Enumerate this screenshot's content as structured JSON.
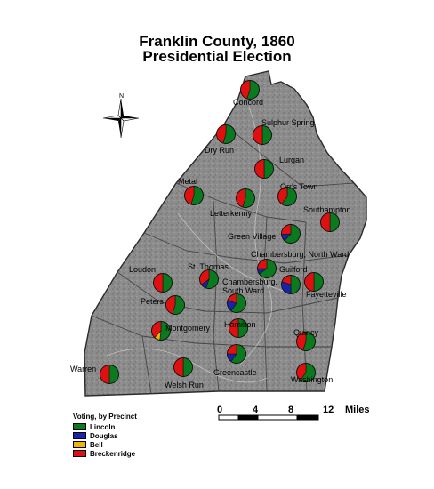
{
  "title": {
    "line1": "Franklin County, 1860",
    "line2": "Presidential Election"
  },
  "compass": {
    "north_label": "N"
  },
  "scale": {
    "ticks": [
      "0",
      "4",
      "8",
      "12"
    ],
    "unit": "Miles"
  },
  "legend": {
    "title": "Voting, by Precinct",
    "items": [
      {
        "label": "Lincoln",
        "color": "#0a7a1e"
      },
      {
        "label": "Douglas",
        "color": "#1a22a8"
      },
      {
        "label": "Bell",
        "color": "#f2b400"
      },
      {
        "label": "Breckenridge",
        "color": "#e01010"
      }
    ]
  },
  "precincts": [
    {
      "name": "Concord",
      "shares": {
        "Lincoln": 0.55,
        "Douglas": 0,
        "Bell": 0,
        "Breckenridge": 0.45
      }
    },
    {
      "name": "Sulphur Spring",
      "shares": {
        "Lincoln": 0.5,
        "Douglas": 0,
        "Bell": 0,
        "Breckenridge": 0.5
      }
    },
    {
      "name": "Dry Run",
      "shares": {
        "Lincoln": 0.55,
        "Douglas": 0,
        "Bell": 0,
        "Breckenridge": 0.45
      }
    },
    {
      "name": "Lurgan",
      "shares": {
        "Lincoln": 0.5,
        "Douglas": 0,
        "Bell": 0,
        "Breckenridge": 0.5
      }
    },
    {
      "name": "Metal",
      "shares": {
        "Lincoln": 0.55,
        "Douglas": 0,
        "Bell": 0,
        "Breckenridge": 0.45
      }
    },
    {
      "name": "Orr's Town",
      "shares": {
        "Lincoln": 0.6,
        "Douglas": 0,
        "Bell": 0,
        "Breckenridge": 0.4
      }
    },
    {
      "name": "Letterkenny",
      "shares": {
        "Lincoln": 0.55,
        "Douglas": 0,
        "Bell": 0,
        "Breckenridge": 0.45
      }
    },
    {
      "name": "Southampton",
      "shares": {
        "Lincoln": 0.5,
        "Douglas": 0,
        "Bell": 0,
        "Breckenridge": 0.5
      }
    },
    {
      "name": "Green Village",
      "shares": {
        "Lincoln": 0.62,
        "Douglas": 0.12,
        "Bell": 0,
        "Breckenridge": 0.26
      }
    },
    {
      "name": "Chambersburg, North Ward",
      "shares": {
        "Lincoln": 0.65,
        "Douglas": 0.1,
        "Bell": 0,
        "Breckenridge": 0.25
      }
    },
    {
      "name": "Loudon",
      "shares": {
        "Lincoln": 0.5,
        "Douglas": 0,
        "Bell": 0,
        "Breckenridge": 0.5
      }
    },
    {
      "name": "St. Thomas",
      "shares": {
        "Lincoln": 0.55,
        "Douglas": 0.1,
        "Bell": 0,
        "Breckenridge": 0.35
      }
    },
    {
      "name": "Guilford",
      "shares": {
        "Lincoln": 0.5,
        "Douglas": 0.3,
        "Bell": 0,
        "Breckenridge": 0.2
      }
    },
    {
      "name": "Fayetteville",
      "shares": {
        "Lincoln": 0.5,
        "Douglas": 0,
        "Bell": 0,
        "Breckenridge": 0.5
      }
    },
    {
      "name": "Chambersburg, South Ward",
      "shares": {
        "Lincoln": 0.6,
        "Douglas": 0.2,
        "Bell": 0,
        "Breckenridge": 0.2
      }
    },
    {
      "name": "Peters",
      "shares": {
        "Lincoln": 0.55,
        "Douglas": 0,
        "Bell": 0,
        "Breckenridge": 0.45
      }
    },
    {
      "name": "Hamilton",
      "shares": {
        "Lincoln": 0.5,
        "Douglas": 0,
        "Bell": 0,
        "Breckenridge": 0.5
      }
    },
    {
      "name": "Montgomery",
      "shares": {
        "Lincoln": 0.52,
        "Douglas": 0,
        "Bell": 0.1,
        "Breckenridge": 0.38
      }
    },
    {
      "name": "Quincy",
      "shares": {
        "Lincoln": 0.55,
        "Douglas": 0,
        "Bell": 0,
        "Breckenridge": 0.45
      }
    },
    {
      "name": "Greencastle",
      "shares": {
        "Lincoln": 0.6,
        "Douglas": 0.15,
        "Bell": 0,
        "Breckenridge": 0.25
      }
    },
    {
      "name": "Warren",
      "shares": {
        "Lincoln": 0.5,
        "Douglas": 0,
        "Bell": 0,
        "Breckenridge": 0.5
      }
    },
    {
      "name": "Welsh Run",
      "shares": {
        "Lincoln": 0.5,
        "Douglas": 0,
        "Bell": 0,
        "Breckenridge": 0.5
      }
    },
    {
      "name": "Washington",
      "shares": {
        "Lincoln": 0.6,
        "Douglas": 0,
        "Bell": 0,
        "Breckenridge": 0.4
      }
    }
  ]
}
